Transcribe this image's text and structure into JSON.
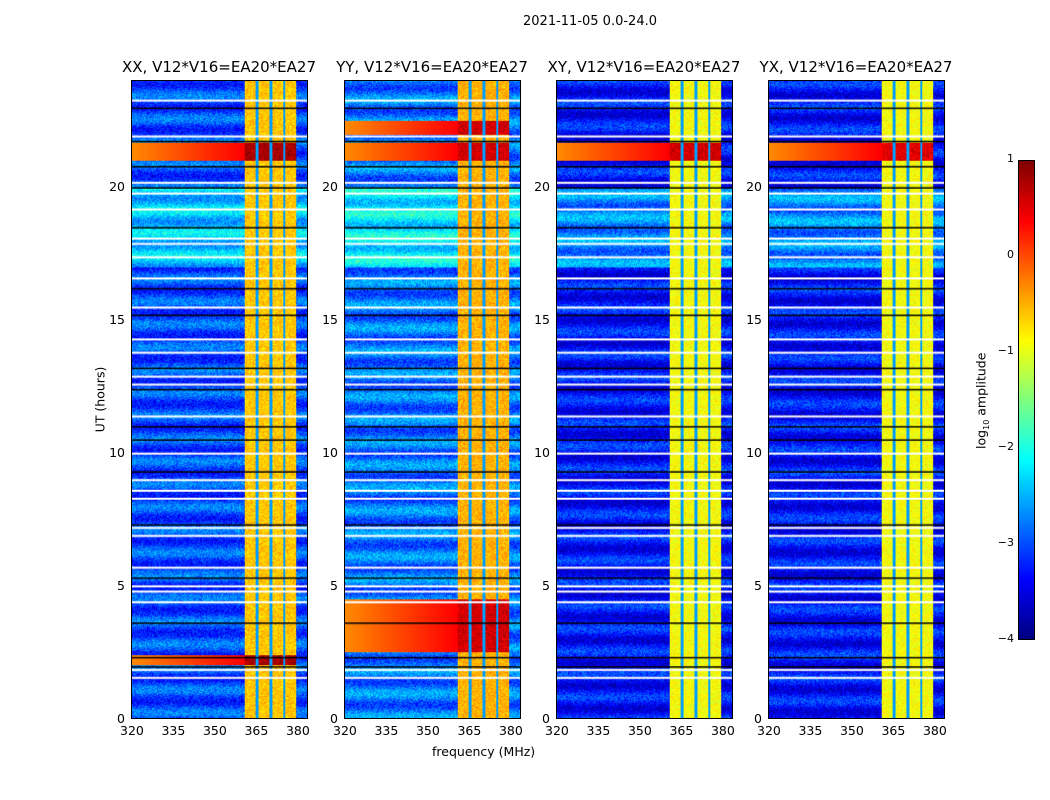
{
  "chart_data": {
    "type": "heatmap",
    "title": "2021-11-05 0.0-24.0",
    "xlabel": "frequency (MHz)",
    "ylabel": "UT (hours)",
    "xlim": [
      320,
      384
    ],
    "ylim": [
      0,
      24
    ],
    "xticks": [
      320,
      335,
      350,
      365,
      380
    ],
    "yticks": [
      0,
      5,
      10,
      15,
      20
    ],
    "colorbar": {
      "label": "log10 amplitude",
      "label_main": "log",
      "label_sub": "10",
      "label_rest": " amplitude",
      "range": [
        -4,
        1
      ],
      "ticks": [
        1,
        0,
        -1,
        -2,
        -3,
        -4
      ],
      "tick_labels": [
        "1",
        "0",
        "−1",
        "−2",
        "−3",
        "−4"
      ],
      "colormap": "jet"
    },
    "panels": [
      {
        "title": "XX, V12*V16=EA20*EA27",
        "background_level": -3.0,
        "band_level": -0.6,
        "strong_times": [
          [
            21.0,
            21.7
          ],
          [
            2.0,
            2.4
          ]
        ],
        "strong_level": 0.8
      },
      {
        "title": "YY, V12*V16=EA20*EA27",
        "background_level": -2.8,
        "band_level": -0.5,
        "strong_times": [
          [
            21.0,
            21.7
          ],
          [
            22.0,
            22.5
          ],
          [
            2.5,
            4.5
          ]
        ],
        "strong_level": 0.6
      },
      {
        "title": "XY, V12*V16=EA20*EA27",
        "background_level": -3.3,
        "band_level": -0.9,
        "strong_times": [
          [
            21.0,
            21.7
          ]
        ],
        "strong_level": 0.6
      },
      {
        "title": "YX, V12*V16=EA20*EA27",
        "background_level": -3.3,
        "band_level": -0.9,
        "strong_times": [
          [
            21.0,
            21.7
          ]
        ],
        "strong_level": 0.5
      }
    ],
    "band_mhz": [
      361,
      380
    ],
    "band_gaps_mhz": [
      365.5,
      370.5,
      375.5
    ],
    "flagged_white_hours": [
      23.3,
      21.95,
      20.2,
      19.8,
      19.2,
      18.1,
      17.9,
      17.4,
      16.6,
      15.5,
      14.3,
      13.8,
      12.9,
      12.6,
      11.4,
      10.0,
      9.0,
      8.6,
      8.3,
      7.2,
      6.9,
      5.7,
      5.0,
      4.8,
      4.4,
      1.85,
      1.55
    ],
    "flagged_black_hours": [
      23.0,
      21.75,
      20.8,
      20.0,
      18.5,
      16.2,
      15.2,
      13.2,
      12.4,
      11.0,
      10.5,
      9.3,
      7.3,
      5.3,
      3.6,
      2.3,
      1.95
    ]
  }
}
